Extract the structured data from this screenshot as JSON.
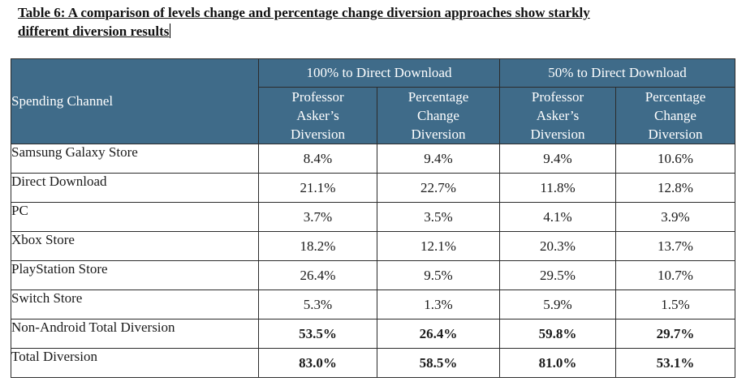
{
  "caption": {
    "line1": "Table 6: A comparison of levels change and percentage change diversion approaches show starkly",
    "line2": "different diversion results"
  },
  "table": {
    "row_header_label": "Spending Channel",
    "groups": [
      "100% to Direct Download",
      "50% to Direct Download"
    ],
    "sub_headers": [
      [
        "Professor",
        "Asker’s",
        "Diversion"
      ],
      [
        "Percentage",
        "Change",
        "Diversion"
      ],
      [
        "Professor",
        "Asker’s",
        "Diversion"
      ],
      [
        "Percentage",
        "Change",
        "Diversion"
      ]
    ],
    "rows": [
      {
        "label": "Samsung Galaxy Store",
        "values": [
          "8.4%",
          "9.4%",
          "9.4%",
          "10.6%"
        ]
      },
      {
        "label": "Direct Download",
        "values": [
          "21.1%",
          "22.7%",
          "11.8%",
          "12.8%"
        ]
      },
      {
        "label": "PC",
        "values": [
          "3.7%",
          "3.5%",
          "4.1%",
          "3.9%"
        ]
      },
      {
        "label": "Xbox Store",
        "values": [
          "18.2%",
          "12.1%",
          "20.3%",
          "13.7%"
        ]
      },
      {
        "label": "PlayStation Store",
        "values": [
          "26.4%",
          "9.5%",
          "29.5%",
          "10.7%"
        ]
      },
      {
        "label": "Switch Store",
        "values": [
          "5.3%",
          "1.3%",
          "5.9%",
          "1.5%"
        ]
      },
      {
        "label": "Non-Android Total Diversion",
        "values": [
          "53.5%",
          "26.4%",
          "59.8%",
          "29.7%"
        ]
      },
      {
        "label": "Total Diversion",
        "values": [
          "83.0%",
          "58.5%",
          "81.0%",
          "53.1%"
        ]
      }
    ]
  }
}
